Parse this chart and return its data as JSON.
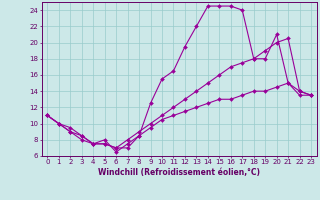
{
  "xlabel": "Windchill (Refroidissement éolien,°C)",
  "bg_color": "#cce8e8",
  "grid_color": "#99cccc",
  "line_color": "#990099",
  "xlim": [
    -0.5,
    23.5
  ],
  "ylim": [
    6,
    25
  ],
  "xticks": [
    0,
    1,
    2,
    3,
    4,
    5,
    6,
    7,
    8,
    9,
    10,
    11,
    12,
    13,
    14,
    15,
    16,
    17,
    18,
    19,
    20,
    21,
    22,
    23
  ],
  "yticks": [
    6,
    8,
    10,
    12,
    14,
    16,
    18,
    20,
    22,
    24
  ],
  "line1_x": [
    0,
    1,
    2,
    3,
    4,
    5,
    6,
    7,
    8,
    9,
    10,
    11,
    12,
    13,
    14,
    15,
    16,
    17,
    18,
    19,
    20,
    21,
    22,
    23
  ],
  "line1_y": [
    11,
    10,
    9,
    8.5,
    7.5,
    8,
    6.5,
    7.5,
    8.5,
    12.5,
    15.5,
    16.5,
    19.5,
    22,
    24.5,
    24.5,
    24.5,
    24,
    18,
    18,
    21,
    15,
    14,
    13.5
  ],
  "line2_x": [
    0,
    1,
    2,
    3,
    4,
    5,
    6,
    7,
    8,
    9,
    10,
    11,
    12,
    13,
    14,
    15,
    16,
    17,
    18,
    19,
    20,
    21,
    22,
    23
  ],
  "line2_y": [
    11,
    10,
    9.5,
    8.5,
    7.5,
    7.5,
    7,
    8,
    9,
    10,
    11,
    12,
    13,
    14,
    15,
    16,
    17,
    17.5,
    18,
    19,
    20,
    20.5,
    14,
    13.5
  ],
  "line3_x": [
    0,
    1,
    2,
    3,
    4,
    5,
    6,
    7,
    8,
    9,
    10,
    11,
    12,
    13,
    14,
    15,
    16,
    17,
    18,
    19,
    20,
    21,
    22,
    23
  ],
  "line3_y": [
    11,
    10,
    9,
    8,
    7.5,
    7.5,
    7,
    7,
    8.5,
    9.5,
    10.5,
    11,
    11.5,
    12,
    12.5,
    13,
    13,
    13.5,
    14,
    14,
    14.5,
    15,
    13.5,
    13.5
  ],
  "tick_color": "#660066",
  "spine_color": "#660066",
  "xlabel_fontsize": 5.5,
  "tick_fontsize": 5.0,
  "linewidth": 0.8,
  "markersize": 2.0
}
